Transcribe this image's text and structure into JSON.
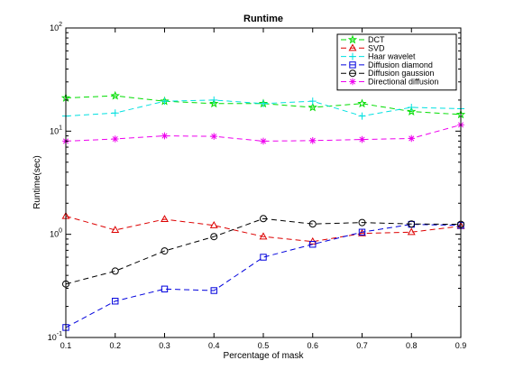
{
  "chart_data": {
    "type": "line",
    "title": "Runtime",
    "xlabel": "Percentage of mask",
    "ylabel": "Runtime(sec)",
    "yscale": "log",
    "xlim": [
      0.1,
      0.9
    ],
    "ylim": [
      0.1,
      100
    ],
    "x": [
      0.1,
      0.2,
      0.3,
      0.4,
      0.5,
      0.6,
      0.7,
      0.8,
      0.9
    ],
    "xticks": [
      "0.1",
      "0.2",
      "0.3",
      "0.4",
      "0.5",
      "0.6",
      "0.7",
      "0.8",
      "0.9"
    ],
    "yticks": [
      {
        "value": 0.1,
        "base": "10",
        "exp": "-1"
      },
      {
        "value": 1,
        "base": "10",
        "exp": "0"
      },
      {
        "value": 10,
        "base": "10",
        "exp": "1"
      },
      {
        "value": 100,
        "base": "10",
        "exp": "2"
      }
    ],
    "grid": false,
    "legend_position": "top-right",
    "series": [
      {
        "name": "DCT",
        "color": "#00dd00",
        "marker": "star",
        "values": [
          21,
          22,
          19.5,
          18.5,
          18.5,
          17,
          18.5,
          15.5,
          14.5
        ]
      },
      {
        "name": "SVD",
        "color": "#dd0000",
        "marker": "triangle",
        "values": [
          1.5,
          1.1,
          1.4,
          1.22,
          0.95,
          0.85,
          1.02,
          1.05,
          1.2
        ]
      },
      {
        "name": "Haar wavelet",
        "color": "#00e0e0",
        "marker": "plus",
        "values": [
          14,
          15,
          19.5,
          20,
          18.5,
          19.5,
          14,
          17,
          16.5
        ]
      },
      {
        "name": "Diffusion diamond",
        "color": "#0000dd",
        "marker": "square",
        "values": [
          0.125,
          0.225,
          0.295,
          0.285,
          0.6,
          0.8,
          1.05,
          1.25,
          1.22
        ]
      },
      {
        "name": "Diffusion gaussion",
        "color": "#000000",
        "marker": "circle",
        "values": [
          0.33,
          0.44,
          0.69,
          0.95,
          1.42,
          1.26,
          1.3,
          1.26,
          1.25
        ]
      },
      {
        "name": "Directional diffusion",
        "color": "#ee00ee",
        "marker": "asterisk",
        "values": [
          8.0,
          8.4,
          9.0,
          8.9,
          8.0,
          8.1,
          8.3,
          8.5,
          11.5
        ]
      }
    ]
  }
}
